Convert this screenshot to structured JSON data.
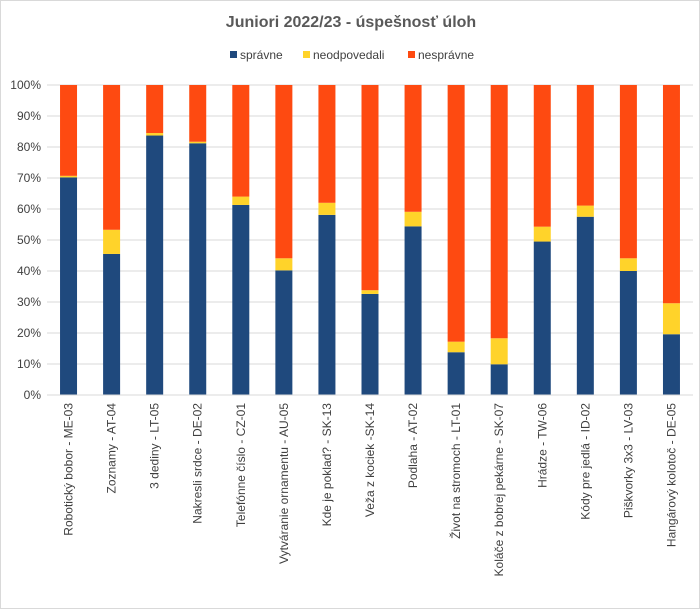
{
  "chart_data": {
    "type": "bar",
    "stacked": true,
    "title": "Juniori 2022/23 - úspešnosť úloh",
    "xlabel": "",
    "ylabel": "",
    "ylim": [
      0,
      100
    ],
    "yticks": [
      "0%",
      "10%",
      "20%",
      "30%",
      "40%",
      "50%",
      "60%",
      "70%",
      "80%",
      "90%",
      "100%"
    ],
    "legend_position": "top",
    "grid": true,
    "categories": [
      "Robotický bobor - ME-03",
      "Zoznamy - AT-04",
      "3 dediny - LT-05",
      "Nakresli srdce - DE-02",
      "Telefónne číslo - CZ-01",
      "Vytváranie ornamentu - AU-05",
      "Kde je poklad? - SK-13",
      "Veža z kociek -SK-14",
      "Podlaha - AT-02",
      "Život na stromoch - LT-01",
      "Koláče z bobrej pekárne - SK-07",
      "Hrádze - TW-06",
      "Kódy pre jedlá - ID-02",
      "Piškvorky 3x3 - LV-03",
      "Hangárový kolotoč - DE-05"
    ],
    "series": [
      {
        "name": "správne",
        "color": "#1f497d",
        "values": [
          70.2,
          45.5,
          83.7,
          81.2,
          61.3,
          40.2,
          58.1,
          32.6,
          54.4,
          13.8,
          9.9,
          49.5,
          57.5,
          40.0,
          19.6
        ]
      },
      {
        "name": "neodpovedali",
        "color": "#ffd32a",
        "values": [
          0.5,
          7.8,
          0.8,
          0.5,
          2.7,
          3.9,
          3.9,
          1.2,
          4.7,
          3.4,
          8.4,
          4.8,
          3.6,
          4.1,
          10.0
        ]
      },
      {
        "name": "nesprávne",
        "color": "#fe4a11",
        "values": [
          29.3,
          46.7,
          15.5,
          18.3,
          36.0,
          55.9,
          38.0,
          66.2,
          40.9,
          82.8,
          81.7,
          45.7,
          38.9,
          55.9,
          70.4
        ]
      }
    ]
  }
}
